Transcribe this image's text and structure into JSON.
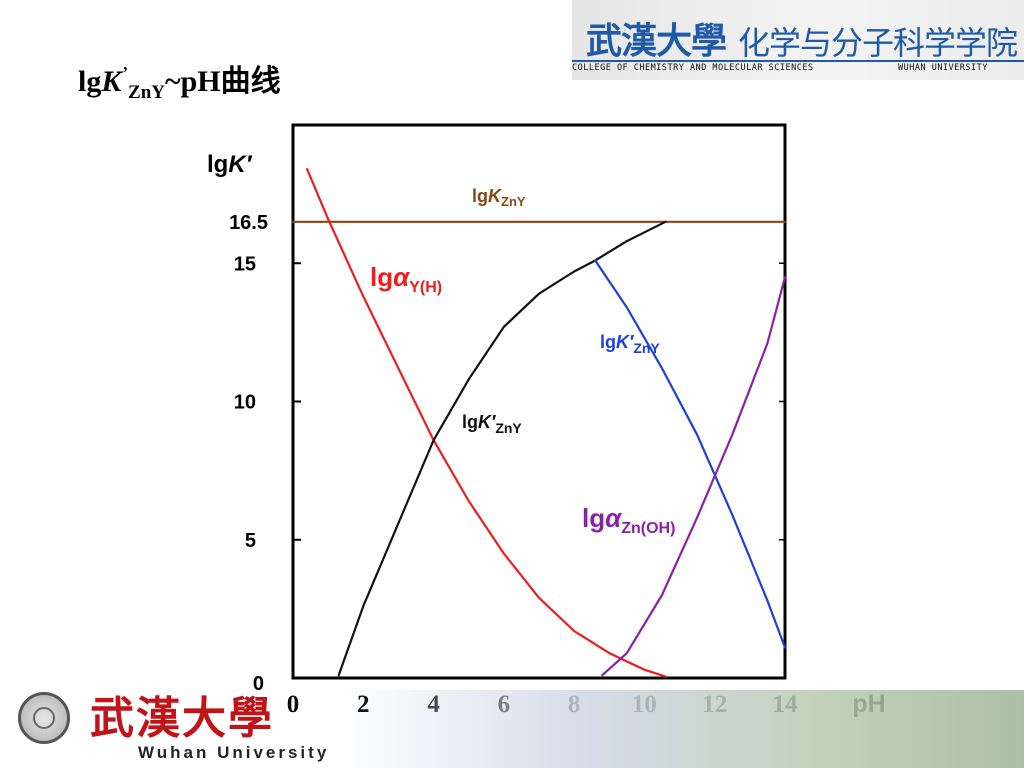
{
  "slide": {
    "title": {
      "lg": "lg",
      "k": "K",
      "prime": "’",
      "sub": "ZnY",
      "rest": "~pH曲线"
    }
  },
  "header_logo": {
    "name_cn": "武漢大學",
    "school_cn": "化学与分子科学学院",
    "school_en": "COLLEGE OF CHEMISTRY AND MOLECULAR SCIENCES",
    "university_en": "WUHAN UNIVERSITY",
    "accent": "#1e5aa8"
  },
  "footer_logo": {
    "name_cn": "武漢大學",
    "name_en": "Wuhan University",
    "accent": "#c01418"
  },
  "chart_data": {
    "type": "line",
    "xlabel": "pH",
    "ylabel": {
      "lg": "lg",
      "k": "K",
      "prime": "′"
    },
    "xlim": [
      0,
      14
    ],
    "ylim": [
      0,
      20
    ],
    "xticks": [
      "0",
      "2",
      "4",
      "6",
      "8",
      "10",
      "12",
      "14"
    ],
    "yticks": [
      {
        "value": 0,
        "label": "0"
      },
      {
        "value": 5,
        "label": "5"
      },
      {
        "value": 10,
        "label": "10"
      },
      {
        "value": 15,
        "label": "15"
      },
      {
        "value": 16.5,
        "label": "16.5"
      }
    ],
    "grid": false,
    "series": [
      {
        "label": {
          "lg": "lg",
          "sym": "K",
          "sub": "ZnY"
        },
        "color": "#8B4513",
        "x": [
          0,
          14
        ],
        "y": [
          16.5,
          16.5
        ]
      },
      {
        "label": {
          "lg": "lg",
          "sym": "α",
          "sub": "Y(H)"
        },
        "color": "#ee1c1c",
        "x": [
          0.4,
          1,
          2,
          3,
          4,
          5,
          6,
          7,
          8,
          9,
          10,
          10.6
        ],
        "y": [
          18.4,
          16.6,
          13.8,
          11.2,
          8.6,
          6.4,
          4.5,
          2.9,
          1.7,
          0.9,
          0.3,
          0.05
        ]
      },
      {
        "label": {
          "lg": "lg",
          "sym": "K′",
          "sub": "ZnY"
        },
        "color": "#111111",
        "x": [
          1.3,
          2,
          3,
          4,
          5,
          6,
          7,
          8,
          8.6,
          9.5,
          10.6
        ],
        "y": [
          0.1,
          2.6,
          5.6,
          8.6,
          10.8,
          12.7,
          13.9,
          14.7,
          15.1,
          15.8,
          16.5
        ]
      },
      {
        "label": {
          "lg": "lg",
          "sym": "K′",
          "sub": "ZnY"
        },
        "color": "#1c3fe0",
        "x": [
          8.6,
          9.5,
          10.5,
          11.5,
          12.5,
          13.5,
          14
        ],
        "y": [
          15.1,
          13.4,
          11.2,
          8.8,
          5.9,
          2.8,
          1.1
        ]
      },
      {
        "label": {
          "lg": "lg",
          "sym": "α",
          "sub": "Zn(OH)"
        },
        "color": "#8b1fa8",
        "x": [
          8.8,
          9.5,
          10.5,
          11.5,
          12.5,
          13.5,
          14
        ],
        "y": [
          0.1,
          0.9,
          3.0,
          5.8,
          8.8,
          12.1,
          14.5
        ]
      }
    ]
  }
}
